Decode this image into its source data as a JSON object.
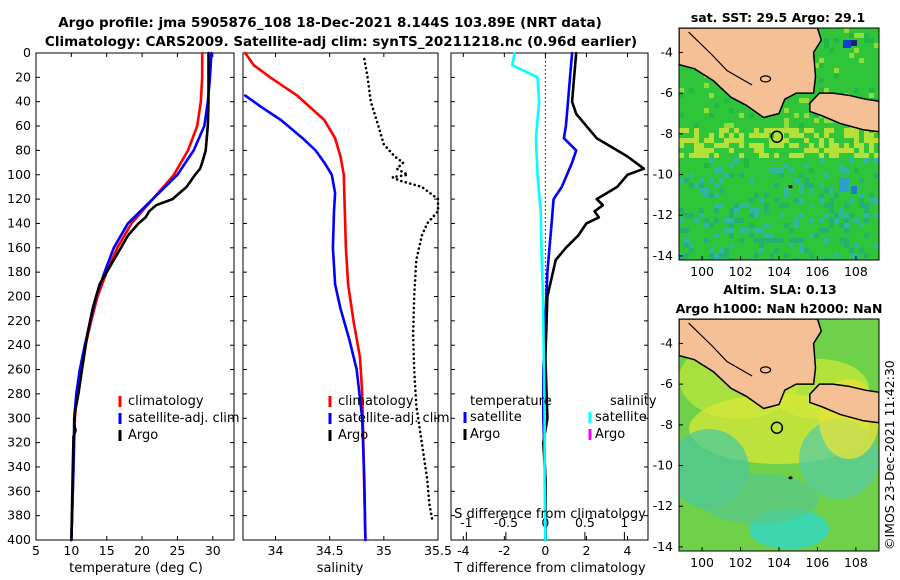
{
  "header": {
    "title_line1": "Argo profile: jma 5905876_108 18-Dec-2021 8.144S 103.89E (NRT data)",
    "title_line2": "Climatology: CARS2009. Satellite-adj clim: synTS_20211218.nc (0.96d earlier)"
  },
  "colors": {
    "climatology": "#ff0000",
    "satellite": "#0000ff",
    "argo": "#000000",
    "cyan": "#00ffff",
    "magenta": "#ff00ff",
    "land": "#f5c095"
  },
  "chart_data": [
    {
      "type": "line",
      "name": "temperature-profile",
      "xlabel": "temperature (deg C)",
      "ylabel": "",
      "xlim": [
        5,
        33
      ],
      "ylim": [
        400,
        0
      ],
      "xticks": [
        5,
        10,
        15,
        20,
        25,
        30
      ],
      "yticks": [
        0,
        20,
        40,
        60,
        80,
        100,
        120,
        140,
        160,
        180,
        200,
        220,
        240,
        260,
        280,
        300,
        320,
        340,
        360,
        380,
        400
      ],
      "legend": [
        "climatology",
        "satellite-adj. clim",
        "Argo"
      ],
      "series": [
        {
          "name": "climatology",
          "color": "#ff0000",
          "x": [
            28.5,
            28.5,
            28.3,
            27.8,
            26.5,
            24.5,
            21.5,
            18.5,
            16.5,
            15.0,
            13.7,
            12.8,
            12.0,
            11.3,
            10.8,
            10.5,
            10.3,
            10.0
          ],
          "y": [
            0,
            20,
            40,
            60,
            80,
            100,
            120,
            140,
            160,
            180,
            200,
            220,
            240,
            260,
            280,
            300,
            340,
            400
          ]
        },
        {
          "name": "satellite-adj. clim",
          "color": "#0000ff",
          "x": [
            29.8,
            29.6,
            29.3,
            28.8,
            27.3,
            25.0,
            21.5,
            18.0,
            16.0,
            14.7,
            13.5,
            12.7,
            11.9,
            11.2,
            10.7,
            10.4,
            10.3,
            10.0
          ],
          "y": [
            0,
            20,
            40,
            60,
            80,
            100,
            120,
            140,
            160,
            180,
            200,
            220,
            240,
            260,
            280,
            300,
            340,
            400
          ]
        },
        {
          "name": "Argo",
          "color": "#000000",
          "x": [
            29.4,
            29.4,
            29.4,
            29.3,
            29.0,
            28.5,
            28.2,
            27.5,
            26.3,
            24.3,
            22.0,
            21.0,
            20.5,
            19.5,
            18.0,
            17.0,
            16.0,
            15.0,
            14.0,
            13.0,
            12.3,
            11.5,
            11.0,
            10.5,
            10.4,
            10.6,
            10.3,
            10.2,
            10.0
          ],
          "y": [
            0,
            20,
            40,
            60,
            80,
            90,
            95,
            100,
            110,
            120,
            125,
            130,
            135,
            140,
            150,
            160,
            170,
            180,
            190,
            210,
            230,
            260,
            280,
            295,
            305,
            310,
            315,
            340,
            400
          ]
        }
      ]
    },
    {
      "type": "line",
      "name": "salinity-profile",
      "xlabel": "salinity",
      "xlim": [
        33.7,
        35.5
      ],
      "ylim": [
        400,
        0
      ],
      "xticks": [
        34,
        34.5,
        35,
        35.5
      ],
      "xticklabels": [
        "34",
        "34.5",
        "35",
        "35.5"
      ],
      "legend": [
        "climatology",
        "satellite-adj. clim",
        "Argo"
      ],
      "series": [
        {
          "name": "climatology",
          "color": "#ff0000",
          "x": [
            33.72,
            33.8,
            33.95,
            34.2,
            34.45,
            34.55,
            34.6,
            34.63,
            34.64,
            34.65,
            34.67,
            34.72,
            34.78,
            34.8,
            34.81,
            34.82,
            34.83
          ],
          "y": [
            0,
            10,
            20,
            35,
            55,
            70,
            85,
            100,
            130,
            160,
            190,
            220,
            250,
            280,
            320,
            360,
            400
          ]
        },
        {
          "name": "satellite-adj. clim",
          "color": "#0000ff",
          "x": [
            33.72,
            33.88,
            34.05,
            34.25,
            34.37,
            34.45,
            34.52,
            34.55,
            34.54,
            34.53,
            34.55,
            34.6,
            34.68,
            34.75,
            34.8,
            34.82,
            34.83
          ],
          "y": [
            35,
            45,
            55,
            70,
            80,
            90,
            100,
            115,
            130,
            160,
            190,
            210,
            235,
            260,
            300,
            350,
            400
          ]
        },
        {
          "name": "Argo",
          "color": "#000000",
          "style": "dotted",
          "x": [
            34.82,
            34.85,
            34.88,
            34.95,
            35.0,
            35.1,
            35.18,
            35.12,
            35.22,
            35.08,
            35.15,
            35.35,
            35.5,
            35.5,
            35.4,
            35.35,
            35.3,
            35.28,
            35.27,
            35.28,
            35.3,
            35.35,
            35.4,
            35.42,
            35.45
          ],
          "y": [
            5,
            20,
            40,
            60,
            75,
            85,
            90,
            95,
            100,
            102,
            105,
            110,
            120,
            130,
            140,
            150,
            170,
            200,
            230,
            260,
            290,
            320,
            350,
            370,
            385
          ]
        }
      ]
    },
    {
      "type": "line",
      "name": "difference-profile",
      "xlabel": "T difference from climatology",
      "xlabel_top": "S difference from climatology",
      "xlim": [
        -4.6,
        5
      ],
      "ylim": [
        400,
        0
      ],
      "xticks": [
        -4,
        -2,
        0,
        2,
        4
      ],
      "xticks_top": [
        -1,
        -0.5,
        0,
        0.5,
        1
      ],
      "xticklabels_top": [
        "-1",
        "-0.5",
        "0",
        "0.5",
        "1"
      ],
      "legend_titles": [
        "temperature",
        "salinity"
      ],
      "legend": [
        "satellite",
        "Argo",
        "satellite",
        "Argo"
      ],
      "series": [
        {
          "name": "T satellite",
          "color": "#0000ff",
          "x": [
            1.3,
            1.2,
            1.1,
            1.0,
            0.9,
            1.5,
            1.3,
            0.8,
            0.4,
            0.3,
            0.1,
            0.0,
            -0.1,
            -0.1,
            0.0,
            0.0
          ],
          "y": [
            0,
            20,
            40,
            60,
            70,
            80,
            90,
            110,
            120,
            140,
            180,
            220,
            260,
            300,
            350,
            400
          ]
        },
        {
          "name": "T Argo",
          "color": "#000000",
          "x": [
            1.5,
            1.4,
            1.3,
            1.5,
            2.5,
            4.0,
            4.8,
            4.0,
            3.5,
            3.0,
            2.5,
            2.8,
            2.4,
            2.6,
            2.0,
            1.6,
            1.0,
            0.5,
            0.1,
            0.0,
            0.1,
            -0.1,
            0.0,
            0.0
          ],
          "y": [
            0,
            20,
            40,
            50,
            70,
            85,
            95,
            100,
            110,
            115,
            120,
            125,
            130,
            135,
            140,
            150,
            160,
            170,
            200,
            250,
            300,
            320,
            350,
            400
          ]
        },
        {
          "name": "S satellite",
          "color": "#00ffff",
          "x": [
            -0.39,
            -0.42,
            -0.1,
            -0.08,
            -0.12,
            -0.1,
            -0.06,
            -0.05,
            -0.03,
            -0.02,
            -0.01,
            -0.01,
            0.0
          ],
          "y": [
            0,
            10,
            20,
            40,
            70,
            100,
            130,
            160,
            200,
            250,
            300,
            350,
            400
          ]
        }
      ]
    },
    {
      "type": "heatmap",
      "name": "sst-map",
      "title": "sat. SST: 29.5 Argo: 29.1",
      "xticks": [
        100,
        102,
        104,
        106,
        108
      ],
      "yticks": [
        -4,
        -6,
        -8,
        -10,
        -12,
        -14
      ],
      "xlim": [
        98.8,
        109.2
      ],
      "ylim": [
        -14.2,
        -2.8
      ],
      "marker": {
        "lon": 103.89,
        "lat": -8.144
      }
    },
    {
      "type": "heatmap",
      "name": "sla-map",
      "title_line1": "Altim. SLA: 0.13",
      "title_line2": "Argo h1000: NaN h2000: NaN",
      "xticks": [
        100,
        102,
        104,
        106,
        108
      ],
      "yticks": [
        -4,
        -6,
        -8,
        -10,
        -12,
        -14
      ],
      "xlim": [
        98.8,
        109.2
      ],
      "ylim": [
        -14.2,
        -2.8
      ],
      "marker": {
        "lon": 103.89,
        "lat": -8.144
      }
    }
  ],
  "legend_labels": {
    "climatology": "climatology",
    "satellite_adj": "satellite-adj. clim",
    "argo": "Argo",
    "temperature": "temperature",
    "salinity": "salinity",
    "satellite": "satellite"
  },
  "footer": {
    "stamp": "©IMOS 23-Dec-2021 11:42:30"
  }
}
